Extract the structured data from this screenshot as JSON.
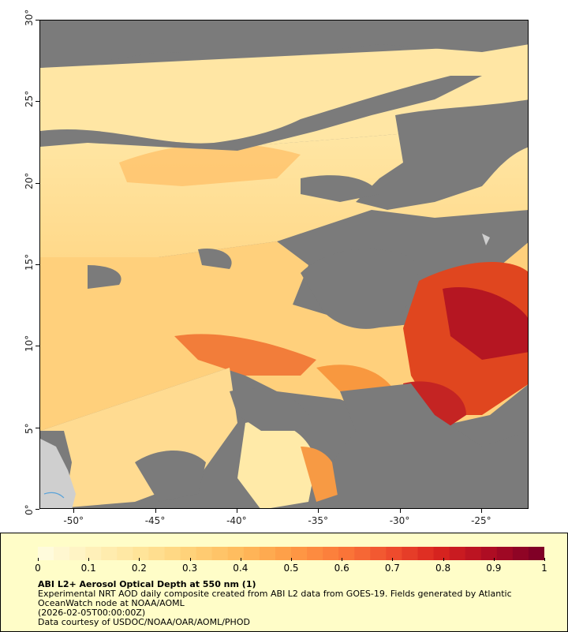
{
  "map": {
    "x_ticks": [
      "-50°",
      "-45°",
      "-40°",
      "-35°",
      "-30°",
      "-25°"
    ],
    "y_ticks": [
      "0°",
      "5°",
      "10°",
      "15°",
      "20°",
      "25°",
      "30°"
    ],
    "lon_range": [
      -52.1,
      -22.1
    ],
    "lat_range": [
      0,
      30
    ],
    "colors": {
      "cloud_mask": "#7b7b7b",
      "land": "#cfcfcf",
      "river": "#5ba3d8"
    }
  },
  "legend": {
    "colorbar_labels": [
      "0",
      "0.1",
      "0.2",
      "0.3",
      "0.4",
      "0.5",
      "0.6",
      "0.7",
      "0.8",
      "0.9",
      "1"
    ],
    "colorbar_colors": [
      "#fffbdc",
      "#fff0b8",
      "#ffe397",
      "#ffd077",
      "#ffba5b",
      "#fe9b46",
      "#fb7a3a",
      "#f04f2e",
      "#d9241f",
      "#b00d23",
      "#800026"
    ],
    "title": "ABI L2+ Aerosol Optical Depth at 550 nm (1)",
    "line1": "Experimental NRT AOD daily composite created from ABI L2 data from GOES-19. Fields generated by Atlantic OceanWatch node at NOAA/AOML",
    "line2": "(2026-02-05T00:00:00Z)",
    "line3": "Data courtesy of USDOC/NOAA/OAR/AOML/PHOD"
  }
}
